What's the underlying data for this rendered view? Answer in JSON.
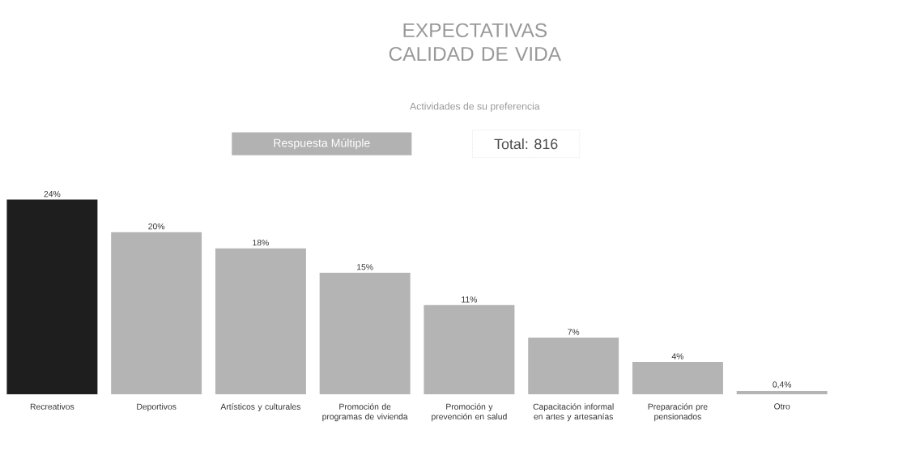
{
  "chart_data": {
    "type": "bar",
    "title": "EXPECTATIVAS CALIDAD DE VIDA",
    "subtitle": "Actividades de su preferencia",
    "annotations": [
      "Respuesta Múltiple",
      "Total: 816"
    ],
    "categories": [
      "Recreativos",
      "Deportivos",
      "Artísticos y culturales",
      "Promoción de programas de vivienda",
      "Promoción y prevención en salud",
      "Capacitación informal en artes y artesanías",
      "Preparación pre pensionados",
      "Otro"
    ],
    "values": [
      24,
      20,
      18,
      15,
      11,
      7,
      4,
      0.4
    ],
    "value_labels": [
      "24%",
      "20%",
      "18%",
      "15%",
      "11%",
      "7%",
      "4%",
      "0,4%"
    ],
    "colors": [
      "#1e1e1e",
      "#b4b4b4",
      "#b4b4b4",
      "#b4b4b4",
      "#b4b4b4",
      "#b4b4b4",
      "#b4b4b4",
      "#b4b4b4"
    ]
  }
}
